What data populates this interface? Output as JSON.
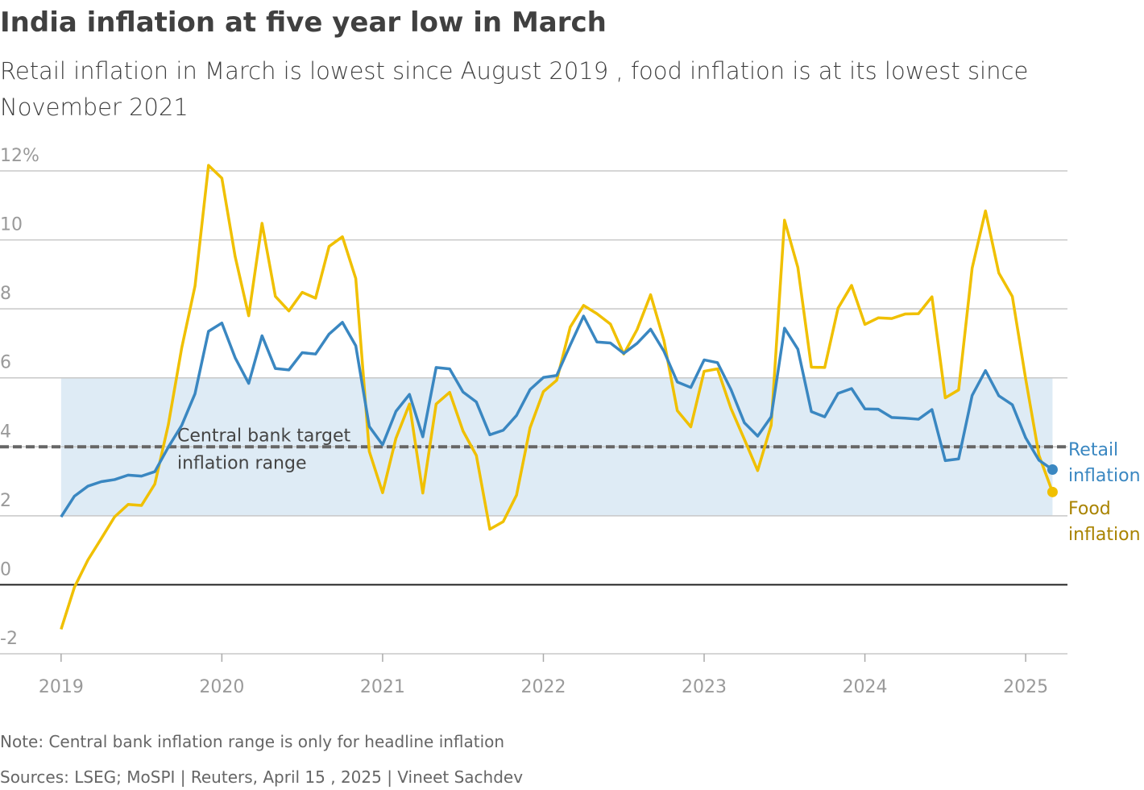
{
  "chart_data": {
    "type": "line",
    "title": "India inflation at five year low in March",
    "subtitle": "Retail inflation in March is lowest since August 2019 , food inflation is at its lowest since November 2021",
    "annotation": [
      "Central bank target",
      "inflation range"
    ],
    "target_range": [
      2,
      6
    ],
    "target_line": 4,
    "note": "Note: Central bank inflation range is only for headline inflation",
    "source": "Sources: LSEG; MoSPI | Reuters, April 15 , 2025 | Vineet Sachdev",
    "xlim": [
      2018.62,
      2025.26
    ],
    "xticks": [
      2019,
      2020,
      2021,
      2022,
      2023,
      2024,
      2025
    ],
    "ylim": [
      -2,
      12
    ],
    "yticks": [
      -2,
      0,
      2,
      4,
      6,
      8,
      10,
      {
        "value": 12,
        "label": "12%"
      }
    ],
    "grid": true,
    "x": [
      2019,
      2019.083,
      2019.167,
      2019.25,
      2019.333,
      2019.417,
      2019.5,
      2019.583,
      2019.667,
      2019.75,
      2019.833,
      2019.917,
      2020,
      2020.083,
      2020.167,
      2020.25,
      2020.333,
      2020.417,
      2020.5,
      2020.583,
      2020.667,
      2020.75,
      2020.833,
      2020.917,
      2021,
      2021.083,
      2021.167,
      2021.25,
      2021.333,
      2021.417,
      2021.5,
      2021.583,
      2021.667,
      2021.75,
      2021.833,
      2021.917,
      2022,
      2022.083,
      2022.167,
      2022.25,
      2022.333,
      2022.417,
      2022.5,
      2022.583,
      2022.667,
      2022.75,
      2022.833,
      2022.917,
      2023,
      2023.083,
      2023.167,
      2023.25,
      2023.333,
      2023.417,
      2023.5,
      2023.583,
      2023.667,
      2023.75,
      2023.833,
      2023.917,
      2024,
      2024.083,
      2024.167,
      2024.25,
      2024.333,
      2024.417,
      2024.5,
      2024.583,
      2024.667,
      2024.75,
      2024.833,
      2024.917,
      2025,
      2025.083,
      2025.167
    ],
    "series": [
      {
        "name": "Retail inflation",
        "color": "#3a87c1",
        "values": [
          1.97,
          2.57,
          2.86,
          2.99,
          3.05,
          3.18,
          3.15,
          3.28,
          3.99,
          4.62,
          5.54,
          7.35,
          7.59,
          6.58,
          5.84,
          7.22,
          6.27,
          6.23,
          6.73,
          6.69,
          7.27,
          7.61,
          6.93,
          4.59,
          4.06,
          5.03,
          5.52,
          4.29,
          6.3,
          6.26,
          5.59,
          5.3,
          4.35,
          4.48,
          4.91,
          5.66,
          6.01,
          6.07,
          6.95,
          7.79,
          7.04,
          7.01,
          6.71,
          7.0,
          7.41,
          6.77,
          5.88,
          5.72,
          6.52,
          6.44,
          5.66,
          4.7,
          4.31,
          4.87,
          7.44,
          6.83,
          5.02,
          4.87,
          5.55,
          5.69,
          5.1,
          5.09,
          4.85,
          4.83,
          4.8,
          5.08,
          3.6,
          3.65,
          5.49,
          6.21,
          5.48,
          5.22,
          4.26,
          3.61,
          3.34
        ]
      },
      {
        "name": "Food inflation",
        "color": "#f0c000",
        "label_color": "#a98300",
        "values": [
          -1.29,
          -0.07,
          0.72,
          1.34,
          1.97,
          2.33,
          2.3,
          2.92,
          4.64,
          6.86,
          8.66,
          12.16,
          11.79,
          9.51,
          7.8,
          10.48,
          8.36,
          7.94,
          8.48,
          8.31,
          9.81,
          10.09,
          8.88,
          3.87,
          2.67,
          4.25,
          5.24,
          2.66,
          5.24,
          5.58,
          4.46,
          3.75,
          1.61,
          1.83,
          2.6,
          4.55,
          5.6,
          5.93,
          7.47,
          8.1,
          7.86,
          7.56,
          6.69,
          7.4,
          8.41,
          7.08,
          5.05,
          4.58,
          6.19,
          6.26,
          5.11,
          4.22,
          3.31,
          4.63,
          10.57,
          9.2,
          6.31,
          6.3,
          8.02,
          8.68,
          7.55,
          7.74,
          7.72,
          7.85,
          7.86,
          8.35,
          5.42,
          5.65,
          9.18,
          10.84,
          9.04,
          8.36,
          5.97,
          3.75,
          2.69
        ]
      }
    ]
  }
}
